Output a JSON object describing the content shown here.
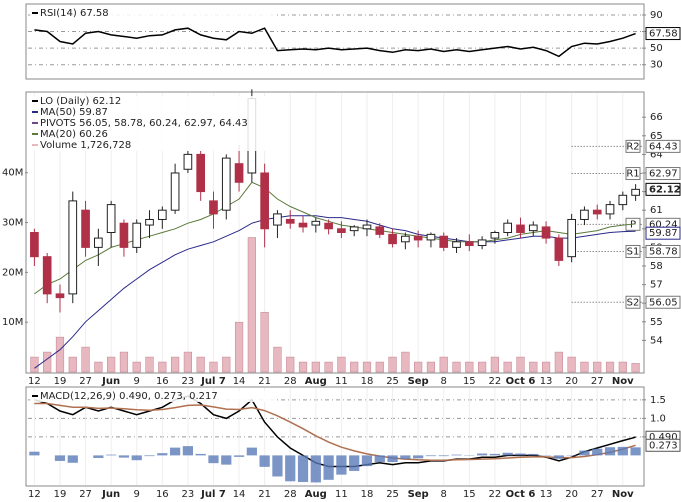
{
  "chart_data": [
    {
      "type": "line",
      "panel": "rsi",
      "legend": [
        {
          "text": "RSI(14) 67.58",
          "color": "#000000"
        }
      ],
      "categories": [
        "12",
        null,
        "19",
        null,
        "27",
        null,
        "Jun",
        null,
        "9",
        null,
        "16",
        null,
        "23",
        null,
        "Jul 7",
        null,
        "14",
        null,
        "21",
        null,
        "28",
        null,
        "Aug",
        null,
        "11",
        null,
        "18",
        null,
        "25",
        null,
        "Sep",
        null,
        "8",
        null,
        "15",
        null,
        "22",
        null,
        "Oct 6",
        null,
        "13",
        null,
        "20",
        null,
        "27",
        null,
        "Nov",
        null
      ],
      "series": [
        {
          "name": "RSI(14)",
          "color": "#000000",
          "values": [
            72,
            70,
            58,
            55,
            68,
            70,
            66,
            64,
            62,
            65,
            66,
            72,
            74,
            66,
            62,
            60,
            70,
            68,
            74,
            47,
            48,
            49,
            48,
            50,
            48,
            49,
            50,
            47,
            45,
            48,
            47,
            49,
            46,
            48,
            46,
            48,
            50,
            52,
            49,
            51,
            47,
            40,
            52,
            56,
            55,
            58,
            62,
            67.58
          ]
        }
      ],
      "ylim": [
        14,
        102
      ],
      "yticks": [
        30,
        50,
        70,
        90
      ],
      "grid": true
    },
    {
      "type": "candlestick",
      "panel": "price",
      "legend": [
        {
          "text": "LO (Daily) 62.12",
          "color": "#000000"
        },
        {
          "text": "MA(50) 59.87",
          "color": "#2a2a8a"
        },
        {
          "text": "PIVOTS 56.05, 58.78, 60.24, 62.97, 64.43",
          "color": "#6a4a8a"
        },
        {
          "text": "MA(20) 60.26",
          "color": "#5a7a3a"
        },
        {
          "text": "Volume 1,726,728",
          "color": "#e8b8c0"
        }
      ],
      "categories": [
        "12",
        null,
        "19",
        null,
        "27",
        null,
        "Jun",
        null,
        "9",
        null,
        "16",
        null,
        "23",
        null,
        "Jul 7",
        null,
        "14",
        null,
        "21",
        null,
        "28",
        null,
        "Aug",
        null,
        "11",
        null,
        "18",
        null,
        "25",
        null,
        "Sep",
        null,
        "8",
        null,
        "15",
        null,
        "22",
        null,
        "Oct 6",
        null,
        "13",
        null,
        "20",
        null,
        "27",
        null,
        "Nov",
        null
      ],
      "open": [
        59.8,
        58.5,
        56.5,
        56.5,
        61,
        59,
        59.8,
        60.3,
        59,
        60.2,
        60.5,
        61,
        63.2,
        64,
        61.5,
        61,
        63.5,
        63,
        63,
        60.2,
        60.5,
        60.3,
        60.2,
        60.3,
        60,
        59.9,
        60,
        60.1,
        59.7,
        59.3,
        59.6,
        59.4,
        59.6,
        59,
        59.3,
        59.1,
        59.5,
        59.8,
        60.2,
        59.9,
        60.1,
        59.5,
        58.5,
        60.5,
        61,
        60.8,
        61.3,
        61.8
      ],
      "high": [
        60,
        58.7,
        57,
        62,
        61.5,
        60,
        61.5,
        60.5,
        60.5,
        61,
        61.2,
        63.5,
        64.2,
        64.2,
        62,
        64,
        64.5,
        67.5,
        63.5,
        61,
        61,
        60.7,
        60.6,
        60.5,
        60.4,
        60.2,
        60.5,
        60.3,
        60,
        59.8,
        59.9,
        59.8,
        59.8,
        59.5,
        59.7,
        59.6,
        59.9,
        60.5,
        60.6,
        60.4,
        60.4,
        59.7,
        60.8,
        61.2,
        61.3,
        61.5,
        62,
        62.4
      ],
      "low": [
        58,
        56,
        55.5,
        56,
        58.5,
        58,
        59,
        58.5,
        58.7,
        59.5,
        60,
        60.8,
        63,
        61.5,
        60,
        60.5,
        62,
        62.5,
        59,
        59.5,
        60,
        59.8,
        59.8,
        59.7,
        59.5,
        59.6,
        59.6,
        59.5,
        59,
        58.9,
        59,
        59,
        58.8,
        58.7,
        58.8,
        58.9,
        59.2,
        59.6,
        59.5,
        59.6,
        59.2,
        58,
        58.2,
        60.2,
        60.5,
        60.5,
        61,
        61.5
      ],
      "close": [
        58.5,
        56.5,
        56.3,
        61.5,
        59,
        59.5,
        61.3,
        59,
        60.3,
        60.5,
        61,
        63,
        64,
        62,
        60.8,
        63.8,
        62.5,
        67,
        60,
        60.8,
        60.3,
        60.1,
        60.4,
        60,
        59.8,
        60.1,
        60.2,
        59.7,
        59.2,
        59.6,
        59.4,
        59.7,
        59,
        59.3,
        59.1,
        59.4,
        59.8,
        60.3,
        59.8,
        60.2,
        59.5,
        58.3,
        60.5,
        61,
        60.8,
        61.3,
        61.8,
        62.12
      ],
      "up_color": "#ffffff",
      "down_color": "#b03048",
      "edge_color": "#222222",
      "ylim": [
        52.3,
        67.3
      ],
      "yticks": [
        54,
        55,
        56,
        57,
        58,
        59,
        60,
        61,
        62,
        63,
        64,
        65,
        66
      ],
      "grid": false,
      "series": [
        {
          "name": "MA(50)",
          "color": "#2a2a8a",
          "values": [
            52.5,
            53,
            53.5,
            54.2,
            55,
            55.6,
            56.2,
            56.8,
            57.3,
            57.8,
            58.2,
            58.6,
            58.9,
            59.1,
            59.3,
            59.6,
            59.9,
            60.3,
            60.5,
            60.6,
            60.7,
            60.7,
            60.7,
            60.6,
            60.6,
            60.5,
            60.4,
            60.2,
            60.0,
            59.9,
            59.7,
            59.6,
            59.5,
            59.4,
            59.3,
            59.3,
            59.3,
            59.4,
            59.5,
            59.6,
            59.6,
            59.5,
            59.5,
            59.6,
            59.7,
            59.8,
            59.85,
            59.87
          ]
        },
        {
          "name": "MA(20)",
          "color": "#5a7a3a",
          "values": [
            56.5,
            57,
            57.3,
            57.8,
            58.3,
            58.6,
            59,
            59.2,
            59.4,
            59.6,
            59.8,
            60,
            60.3,
            60.5,
            60.8,
            61.2,
            61.6,
            62.5,
            62.2,
            61.6,
            61.2,
            60.9,
            60.6,
            60.4,
            60.2,
            60.1,
            60.0,
            59.9,
            59.8,
            59.7,
            59.6,
            59.5,
            59.4,
            59.3,
            59.3,
            59.3,
            59.4,
            59.5,
            59.7,
            59.8,
            59.9,
            59.8,
            59.7,
            59.8,
            59.9,
            60.1,
            60.2,
            60.26
          ]
        }
      ],
      "pivots": [
        {
          "label": "S2",
          "value": 56.05
        },
        {
          "label": "S1",
          "value": 58.78
        },
        {
          "label": "P",
          "value": 60.24
        },
        {
          "label": "R1",
          "value": 62.97
        },
        {
          "label": "R2",
          "value": 64.43
        }
      ],
      "volume": {
        "color": "#e8b8c0",
        "ylim": [
          0,
          56
        ],
        "yticks": [
          {
            "value": 10,
            "label": "10M"
          },
          {
            "value": 20,
            "label": "20M"
          },
          {
            "value": 30,
            "label": "30M"
          },
          {
            "value": 40,
            "label": "40M"
          }
        ],
        "values": [
          3,
          4,
          7,
          3,
          5,
          2,
          3,
          4,
          2,
          3,
          2,
          3,
          4,
          3,
          2,
          3,
          10,
          27,
          12,
          5,
          3,
          2,
          2,
          2,
          3,
          2,
          2,
          2,
          3,
          4,
          2,
          2,
          3,
          2,
          2,
          2,
          3,
          2,
          3,
          2,
          2,
          4,
          3,
          2,
          2,
          2,
          2,
          1.73
        ]
      }
    },
    {
      "type": "line",
      "panel": "macd",
      "legend": [
        {
          "text": "MACD(12,26,9) 0.490, 0.273, 0.217",
          "color": "#000000"
        }
      ],
      "categories": [
        "12",
        null,
        "19",
        null,
        "27",
        null,
        "Jun",
        null,
        "9",
        null,
        "16",
        null,
        "23",
        null,
        "Jul 7",
        null,
        "14",
        null,
        "21",
        null,
        "28",
        null,
        "Aug",
        null,
        "11",
        null,
        "18",
        null,
        "25",
        null,
        "Sep",
        null,
        "8",
        null,
        "15",
        null,
        "22",
        null,
        "Oct 6",
        null,
        "13",
        null,
        "20",
        null,
        "27",
        null,
        "Nov",
        null
      ],
      "series": [
        {
          "name": "MACD",
          "color": "#000000",
          "values": [
            1.5,
            1.4,
            1.2,
            1.1,
            1.3,
            1.2,
            1.3,
            1.2,
            1.1,
            1.2,
            1.3,
            1.5,
            1.6,
            1.4,
            1.1,
            1.0,
            1.2,
            1.5,
            0.9,
            0.5,
            0.2,
            0.0,
            -0.2,
            -0.3,
            -0.3,
            -0.3,
            -0.25,
            -0.2,
            -0.25,
            -0.2,
            -0.2,
            -0.15,
            -0.15,
            -0.1,
            -0.1,
            -0.05,
            -0.05,
            0.0,
            0.0,
            0.0,
            -0.05,
            -0.15,
            -0.05,
            0.1,
            0.2,
            0.3,
            0.4,
            0.49
          ]
        },
        {
          "name": "Signal",
          "color": "#b07050",
          "values": [
            1.4,
            1.4,
            1.35,
            1.3,
            1.3,
            1.27,
            1.28,
            1.26,
            1.23,
            1.22,
            1.24,
            1.29,
            1.35,
            1.36,
            1.31,
            1.25,
            1.24,
            1.29,
            1.21,
            1.07,
            0.9,
            0.72,
            0.53,
            0.36,
            0.22,
            0.12,
            0.04,
            -0.02,
            -0.07,
            -0.1,
            -0.12,
            -0.13,
            -0.13,
            -0.12,
            -0.11,
            -0.1,
            -0.09,
            -0.07,
            -0.05,
            -0.04,
            -0.04,
            -0.06,
            -0.06,
            -0.03,
            0.02,
            0.08,
            0.17,
            0.273
          ]
        },
        {
          "name": "Histogram",
          "kind": "bar",
          "color": "#5a7ab8",
          "values": [
            0.1,
            0,
            -0.15,
            -0.2,
            0,
            -0.07,
            0.02,
            -0.06,
            -0.13,
            -0.02,
            0.06,
            0.21,
            0.25,
            0.04,
            -0.21,
            -0.25,
            -0.04,
            0.21,
            -0.31,
            -0.57,
            -0.7,
            -0.72,
            -0.73,
            -0.66,
            -0.52,
            -0.42,
            -0.29,
            -0.18,
            -0.18,
            -0.1,
            -0.08,
            -0.02,
            -0.02,
            0.02,
            0.01,
            0.05,
            0.04,
            0.07,
            0.05,
            0.04,
            -0.01,
            -0.09,
            0.01,
            0.13,
            0.18,
            0.22,
            0.23,
            0.217
          ]
        }
      ],
      "end_labels": [
        {
          "value": 0.49,
          "label": "0.490"
        },
        {
          "value": 0.273,
          "label": "0.273"
        }
      ],
      "ylim": [
        -0.8,
        1.82
      ],
      "yticks": [
        1.5,
        {
          "value": 1,
          "label": "1.0"
        },
        0.5
      ],
      "grid": true
    }
  ]
}
